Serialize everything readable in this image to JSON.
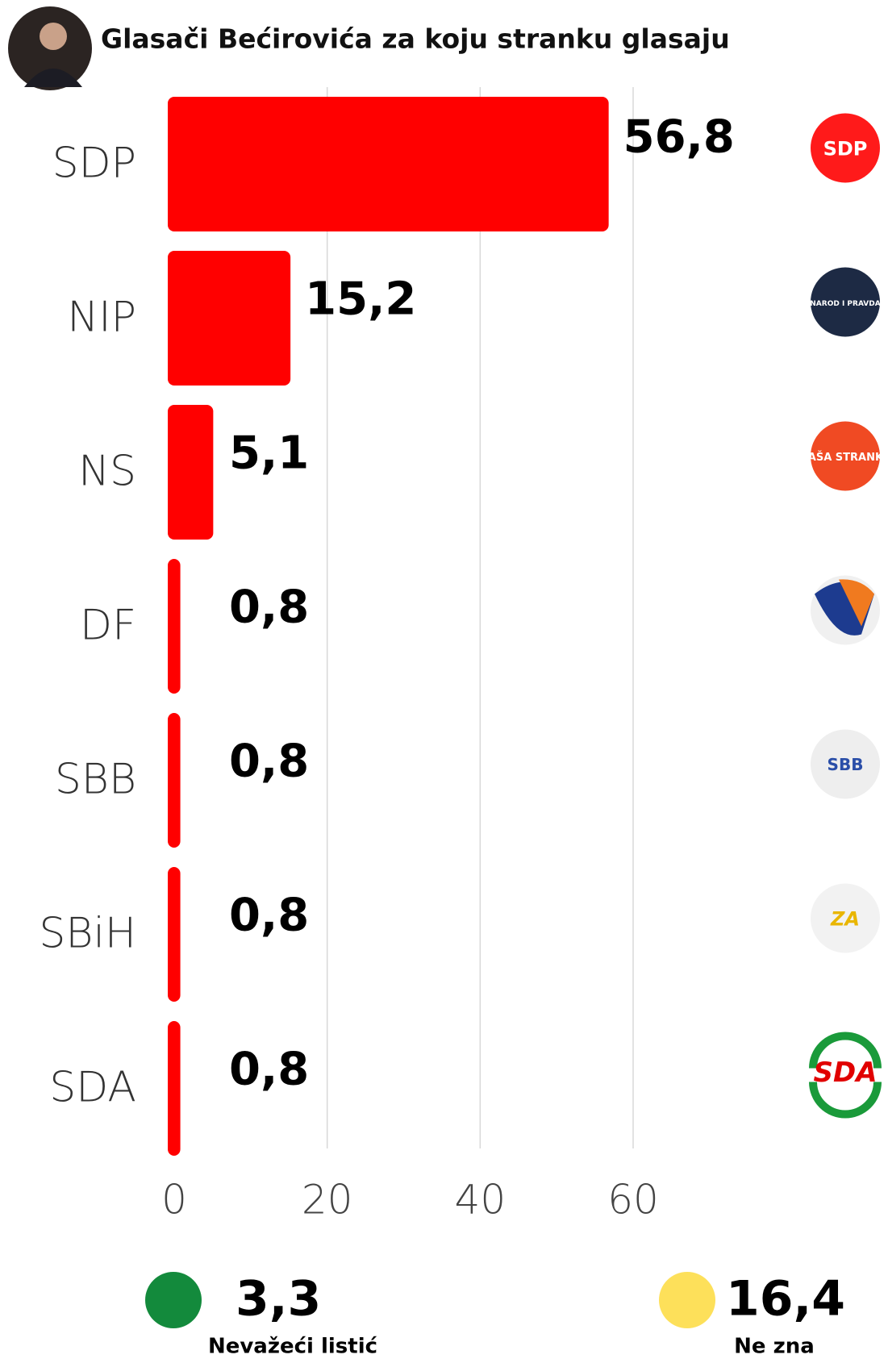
{
  "chart_data": {
    "type": "hbar",
    "title": "Glasači Bećirovića za koju stranku glasaju",
    "categories": [
      "SDP",
      "NIP",
      "NS",
      "DF",
      "SBB",
      "SBiH",
      "SDA"
    ],
    "values": [
      56.8,
      15.2,
      5.1,
      0.8,
      0.8,
      0.8,
      0.8
    ],
    "value_labels": [
      "56,8",
      "15,2",
      "5,1",
      "0,8",
      "0,8",
      "0,8",
      "0,8"
    ],
    "color": "#ff0000",
    "xlim": [
      0,
      60
    ],
    "xticks": [
      0,
      20,
      40,
      60
    ],
    "grid": true,
    "logos": [
      "SDP",
      "NAROD I PRAVDA",
      "NAŠA STRANKA",
      null,
      "SBB",
      "ZA",
      "SDA"
    ],
    "extras": [
      {
        "value": 3.3,
        "label": "3,3",
        "text": "Nevažeći listić",
        "color": "#138a3c"
      },
      {
        "value": 16.4,
        "label": "16,4",
        "text": "Ne zna",
        "color": "#fde05a"
      }
    ]
  }
}
